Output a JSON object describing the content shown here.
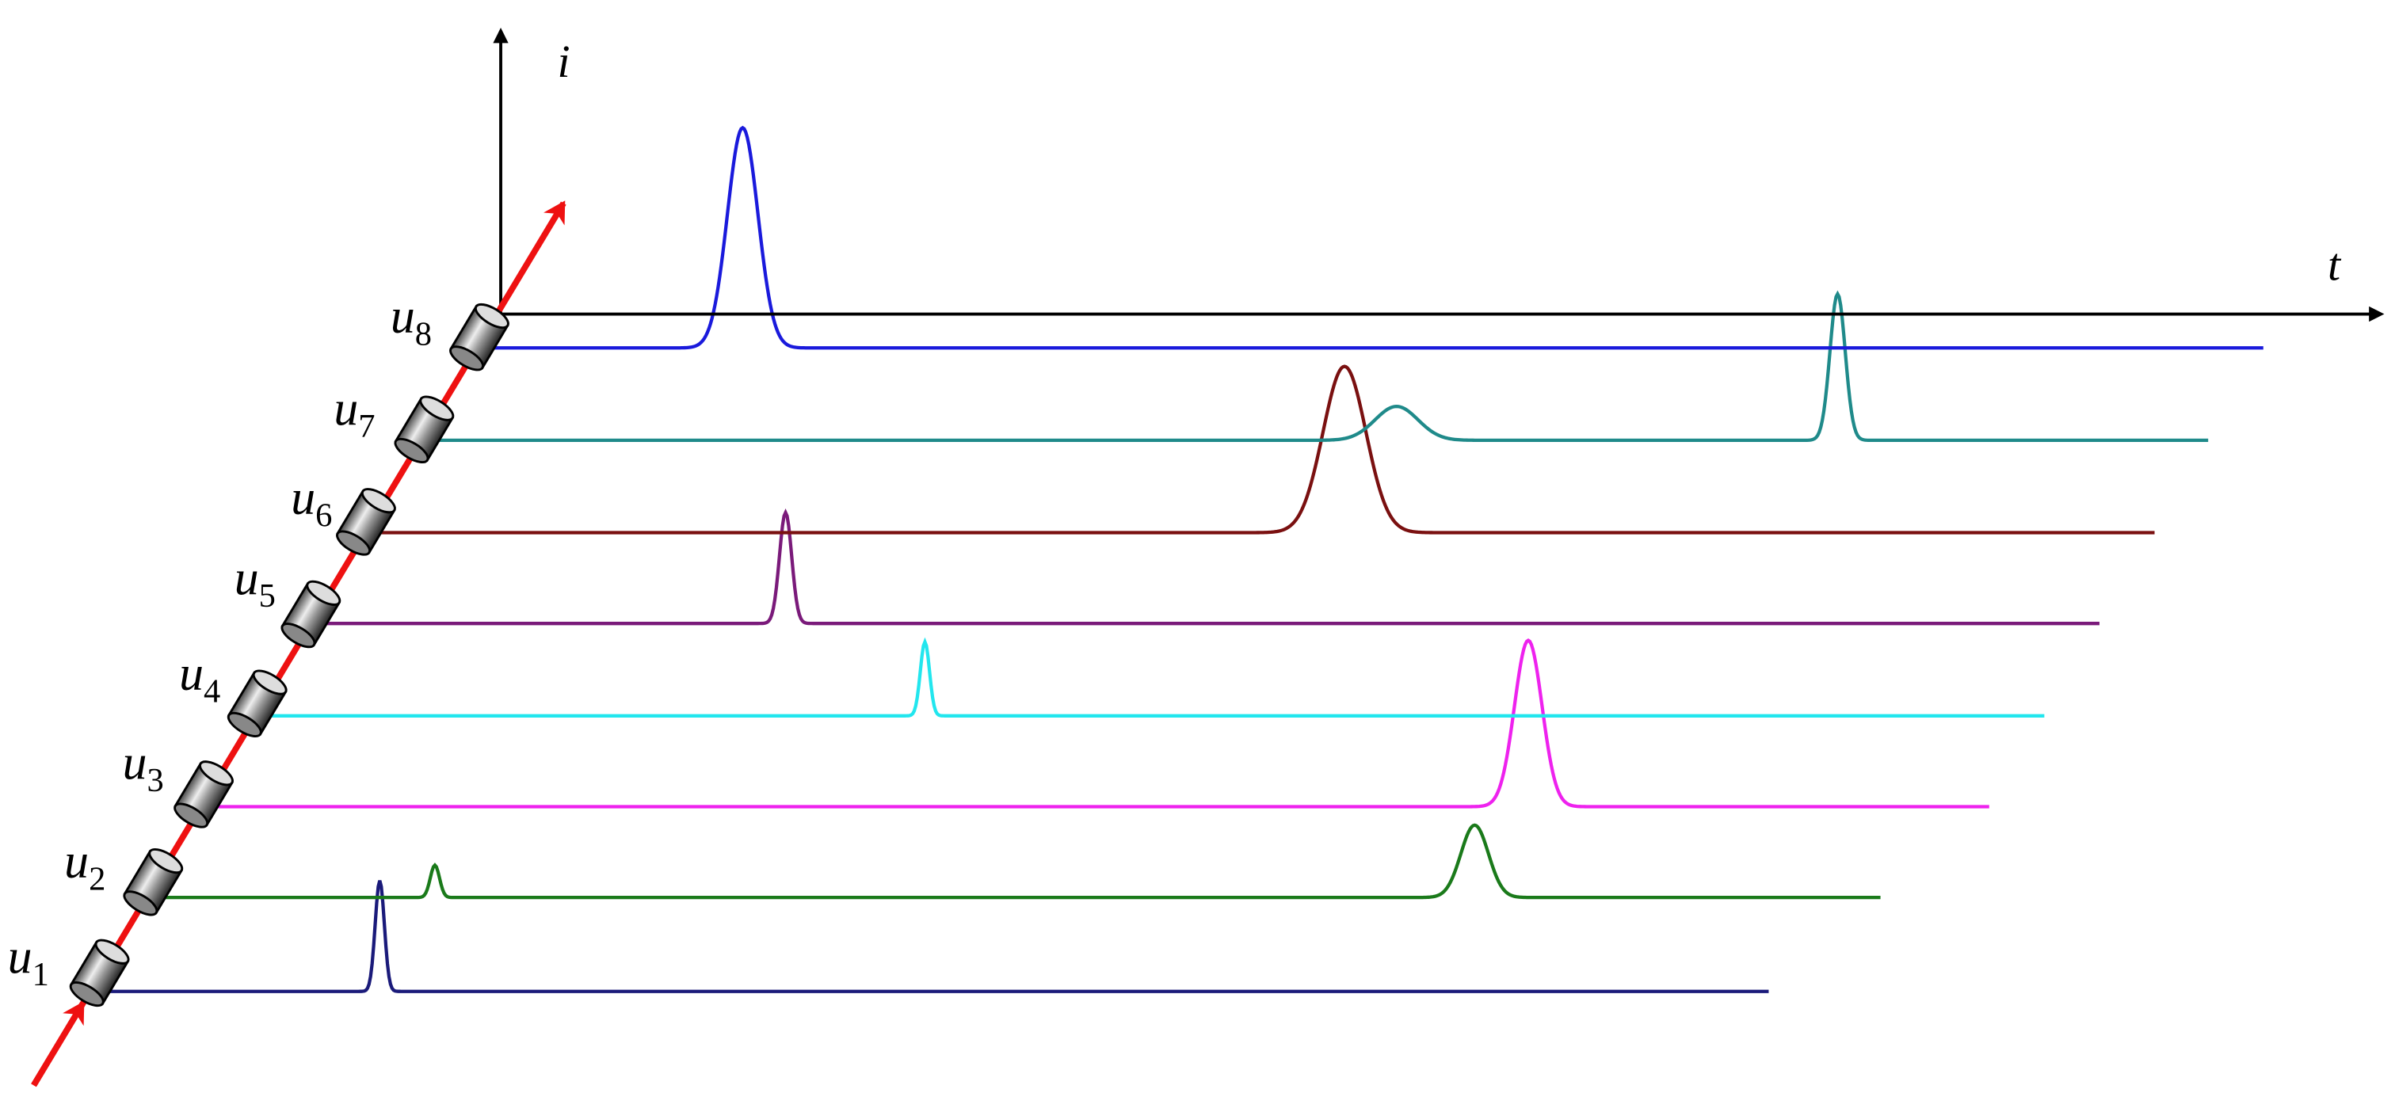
{
  "axes": {
    "vertical": "i",
    "horizontal": "t"
  },
  "units": [
    {
      "base": "u",
      "sub": "1"
    },
    {
      "base": "u",
      "sub": "2"
    },
    {
      "base": "u",
      "sub": "3"
    },
    {
      "base": "u",
      "sub": "4"
    },
    {
      "base": "u",
      "sub": "5"
    },
    {
      "base": "u",
      "sub": "6"
    },
    {
      "base": "u",
      "sub": "7"
    },
    {
      "base": "u",
      "sub": "8"
    }
  ]
}
